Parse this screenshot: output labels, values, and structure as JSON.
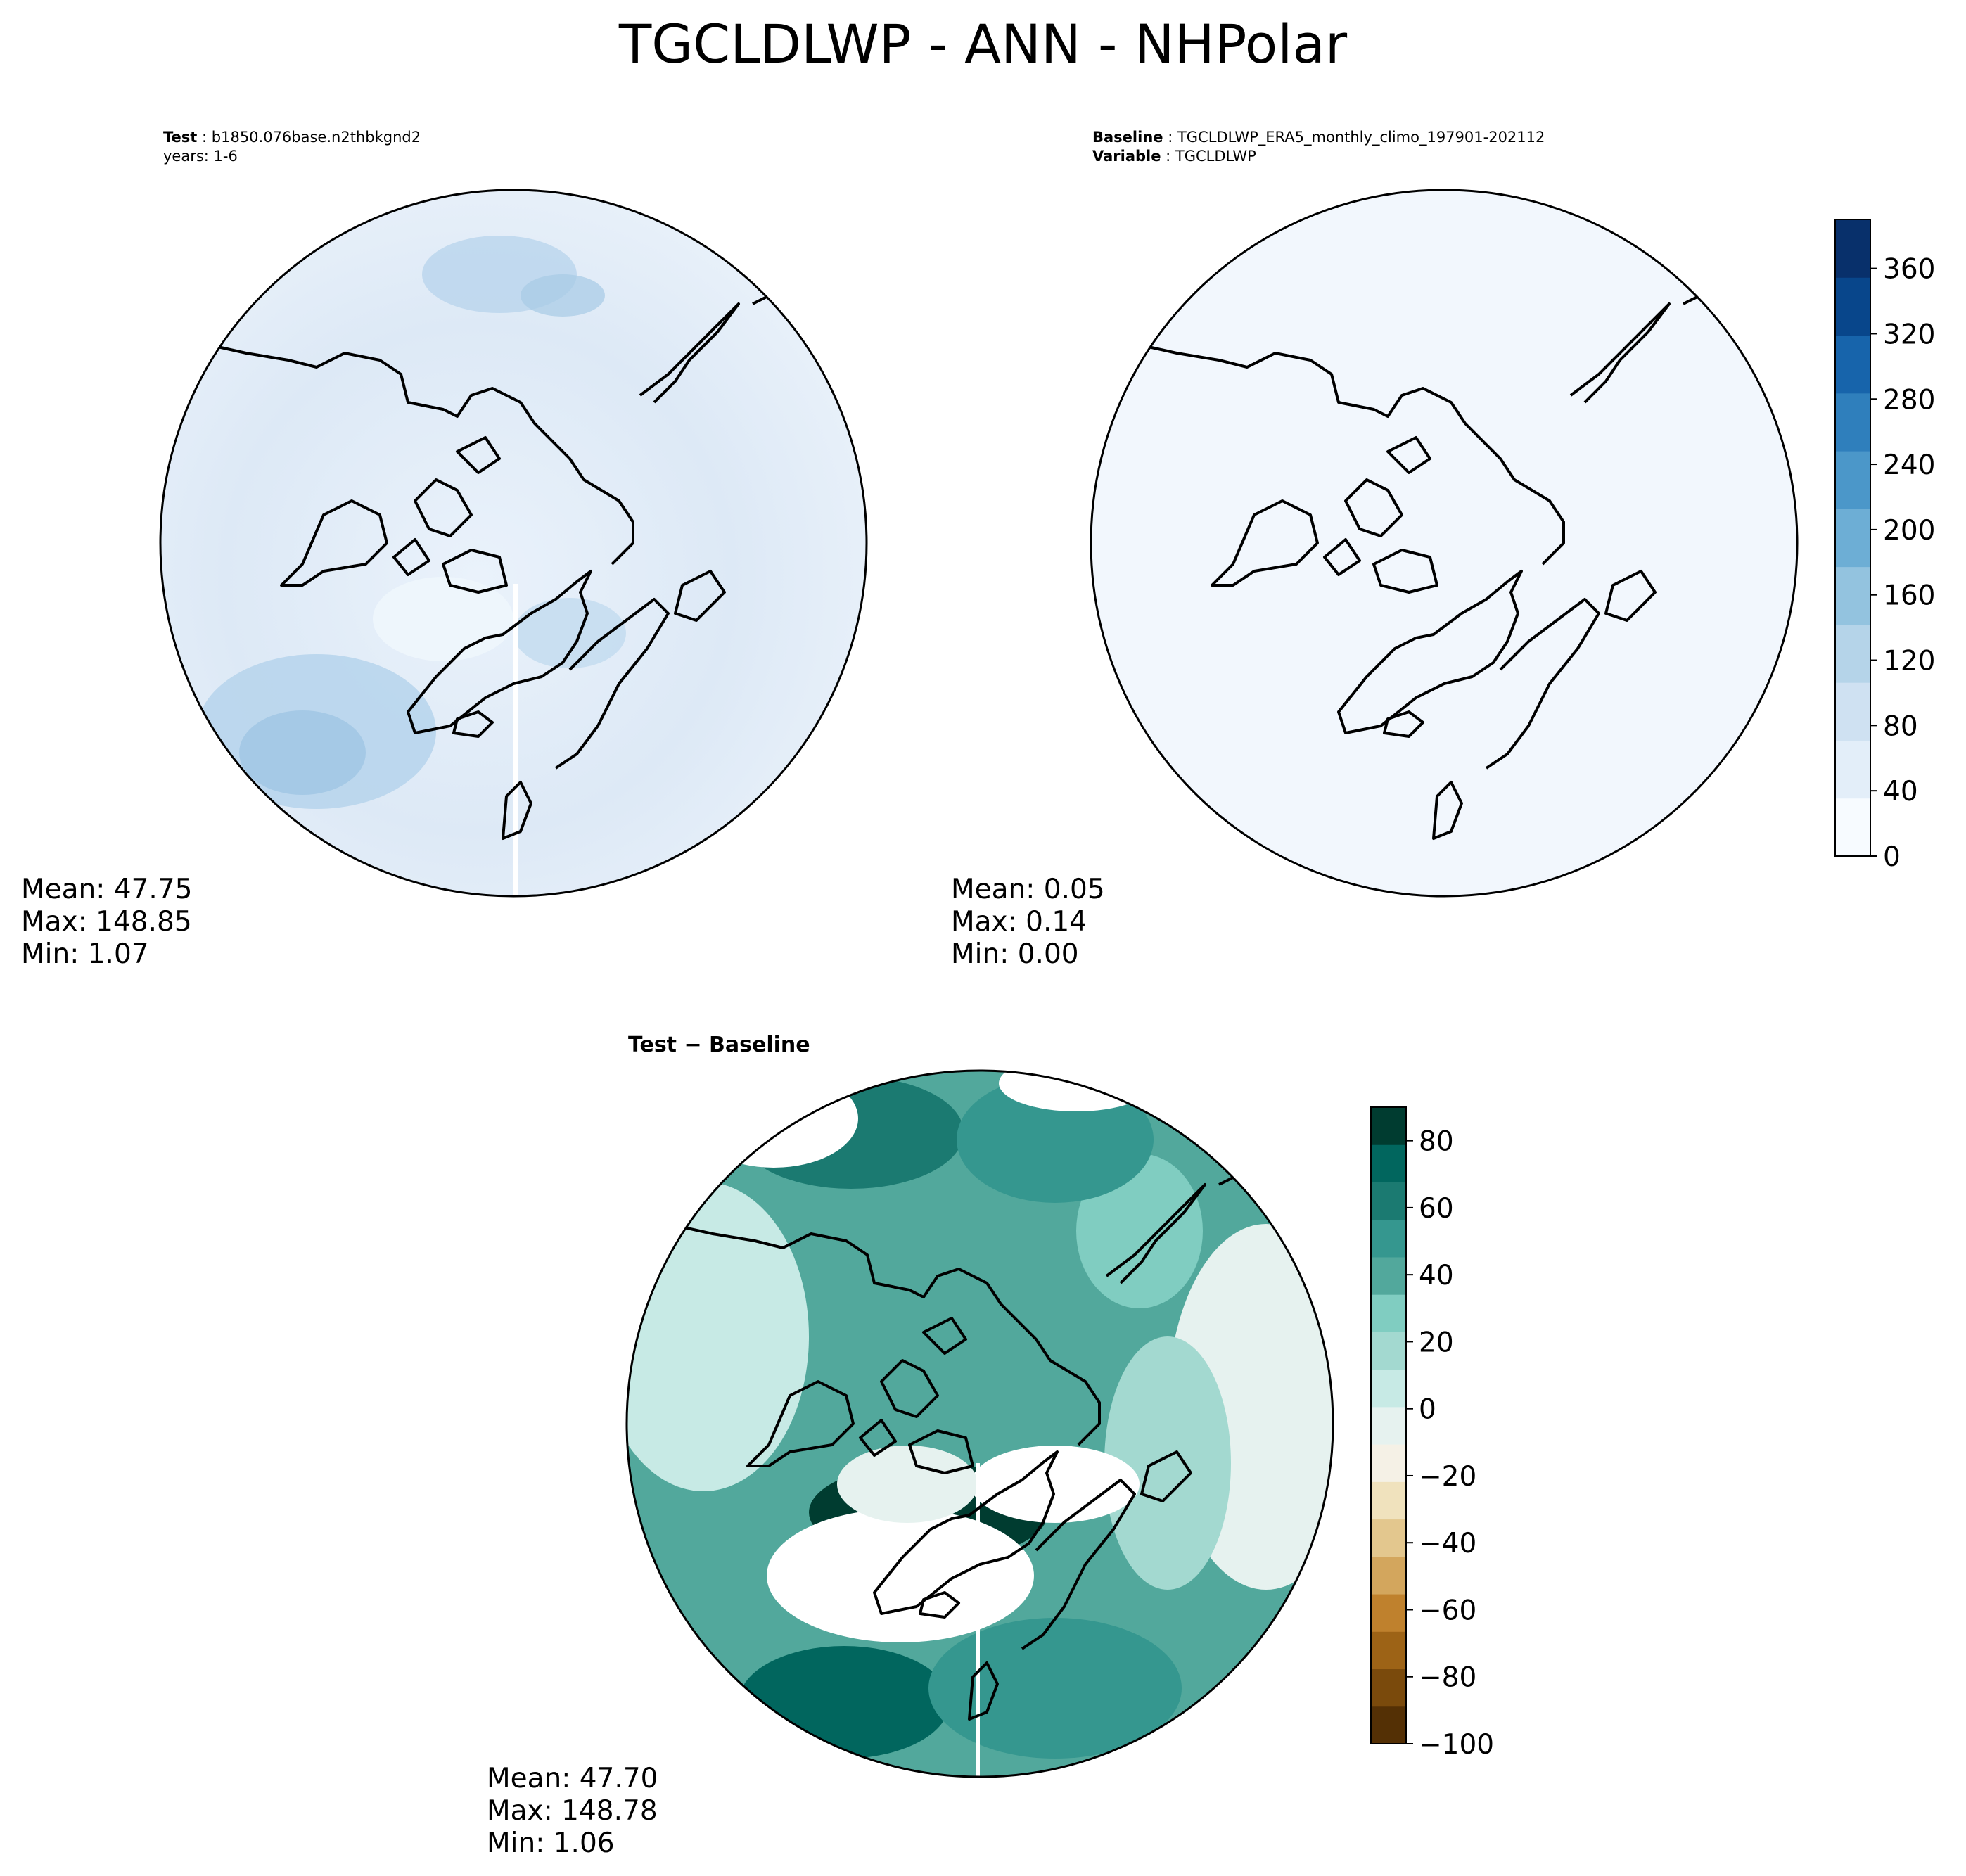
{
  "figure": {
    "title": "TGCLDLWP - ANN - NHPolar"
  },
  "panels": {
    "test": {
      "header_label": "Test",
      "header_value": "b1850.076base.n2thbkgnd2",
      "years_line": "years: 1-6",
      "stats": {
        "mean": "Mean: 47.75",
        "max": "Max: 148.85",
        "min": "Min:  1.07"
      }
    },
    "baseline": {
      "header_label": "Baseline",
      "header_value": "TGCLDLWP_ERA5_monthly_climo_197901-202112",
      "variable_label": "Variable",
      "variable_value": "TGCLDLWP",
      "stats": {
        "mean": "Mean:  0.05",
        "max": "Max:  0.14",
        "min": "Min:  0.00"
      }
    },
    "diff": {
      "title": "Test − Baseline",
      "stats": {
        "mean": "Mean: 47.70",
        "max": "Max: 148.78",
        "min": "Min:  1.06"
      }
    }
  },
  "chart_data": [
    {
      "type": "heatmap",
      "panel": "test",
      "projection": "north-polar-stereographic",
      "colormap": "Blues",
      "colorbar": {
        "min": 0,
        "max": 390,
        "ticks": [
          0,
          40,
          80,
          120,
          160,
          200,
          240,
          280,
          320,
          360
        ]
      },
      "statistics": {
        "mean": 47.75,
        "max": 148.85,
        "min": 1.07
      }
    },
    {
      "type": "heatmap",
      "panel": "baseline",
      "projection": "north-polar-stereographic",
      "colormap": "Blues",
      "colorbar": {
        "min": 0,
        "max": 390,
        "ticks": [
          0,
          40,
          80,
          120,
          160,
          200,
          240,
          280,
          320,
          360
        ]
      },
      "statistics": {
        "mean": 0.05,
        "max": 0.14,
        "min": 0.0
      }
    },
    {
      "type": "heatmap",
      "panel": "diff",
      "projection": "north-polar-stereographic",
      "colormap": "BrBG",
      "colorbar": {
        "min": -100,
        "max": 90,
        "ticks": [
          -100,
          -80,
          -60,
          -40,
          -20,
          0,
          20,
          40,
          60,
          80
        ]
      },
      "statistics": {
        "mean": 47.7,
        "max": 148.78,
        "min": 1.06
      }
    }
  ],
  "colors": {
    "blues": [
      "#f7fbff",
      "#e3eef9",
      "#cfe1f2",
      "#b5d4e9",
      "#93c3df",
      "#6daed5",
      "#4b97c9",
      "#2f7fbc",
      "#1764ab",
      "#08468b",
      "#08306b"
    ],
    "brbg": [
      "#543005",
      "#7a4a0c",
      "#9d6316",
      "#bf812d",
      "#d3a65d",
      "#e3c78e",
      "#f0e2bd",
      "#f5f1e6",
      "#e6f2ef",
      "#c7eae5",
      "#a3d9d0",
      "#80cdc1",
      "#52a89c",
      "#35978f",
      "#1b7a71",
      "#01665e",
      "#003c30"
    ]
  }
}
